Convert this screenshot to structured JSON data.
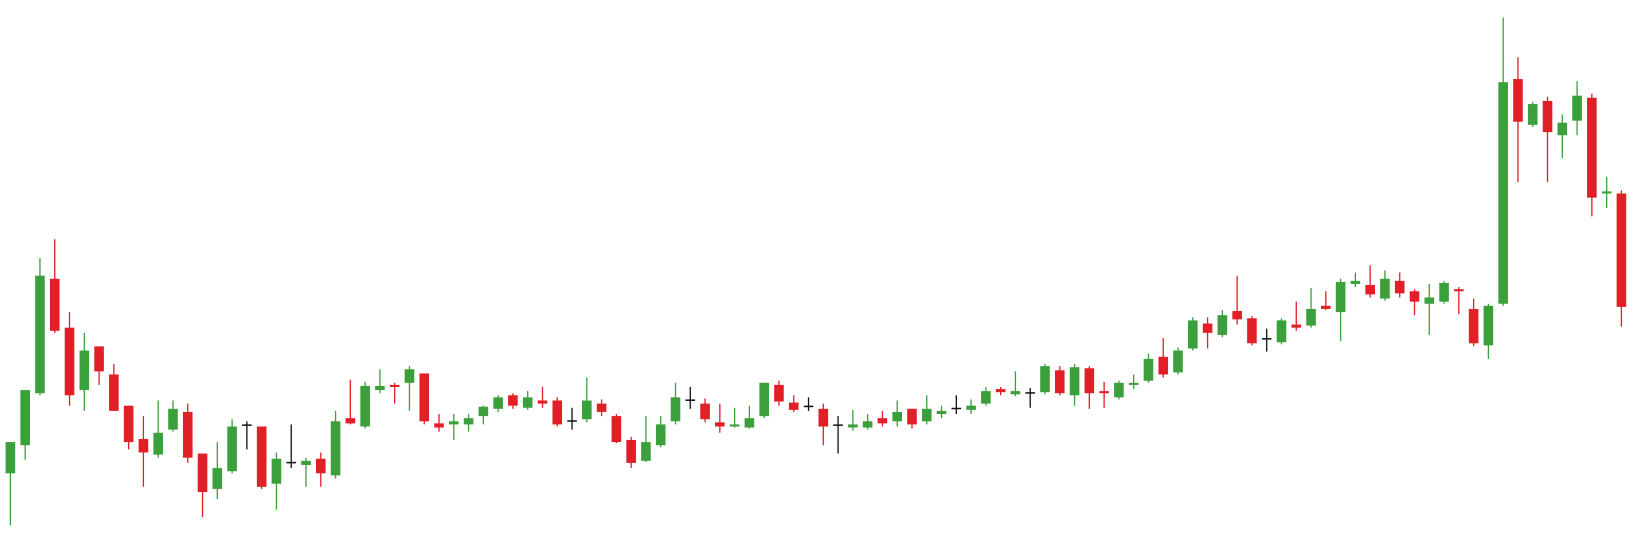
{
  "chart_data": {
    "type": "candlestick",
    "ylim": [
      0,
      522
    ],
    "up_color": "#3b9f3b",
    "down_color": "#e01f26",
    "doji_color": "#111111",
    "open": [
      67,
      94,
      144,
      254,
      207,
      147,
      189,
      162,
      132,
      100,
      85,
      109,
      126,
      86,
      52,
      69,
      114,
      112,
      57,
      78,
      75,
      81,
      65,
      120,
      112,
      147,
      152,
      154,
      163,
      115,
      114,
      114,
      122,
      129,
      142,
      130,
      137,
      137,
      118,
      119,
      134,
      122,
      99,
      79,
      94,
      117,
      138,
      134,
      116,
      112,
      111,
      122,
      152,
      135,
      132,
      129,
      114,
      111,
      111,
      120,
      117,
      129,
      117,
      124,
      130,
      128,
      134,
      148,
      143,
      145,
      145,
      166,
      142,
      168,
      146,
      140,
      152,
      156,
      179,
      164,
      187,
      211,
      200,
      223,
      216,
      197,
      193,
      210,
      209,
      228,
      222,
      249,
      248,
      235,
      252,
      242,
      230,
      232,
      244,
      225,
      190,
      230,
      446,
      402,
      425,
      392,
      406,
      428,
      336,
      336
    ],
    "high": [
      97,
      147,
      274,
      292,
      222,
      202,
      189,
      172,
      132,
      122,
      137,
      137,
      134,
      86,
      97,
      119,
      117,
      112,
      87,
      114,
      82,
      87,
      127,
      157,
      155,
      167,
      154,
      170,
      163,
      124,
      124,
      124,
      132,
      142,
      144,
      146,
      150,
      140,
      130,
      159,
      138,
      124,
      102,
      122,
      122,
      154,
      150,
      139,
      134,
      130,
      132,
      154,
      156,
      142,
      140,
      134,
      122,
      128,
      124,
      127,
      137,
      129,
      142,
      132,
      142,
      138,
      150,
      150,
      165,
      149,
      172,
      170,
      172,
      170,
      155,
      156,
      162,
      182,
      197,
      188,
      217,
      217,
      224,
      257,
      218,
      206,
      216,
      232,
      245,
      242,
      254,
      260,
      267,
      262,
      260,
      244,
      249,
      252,
      246,
      235,
      230,
      505,
      467,
      424,
      429,
      412,
      444,
      432,
      352,
      339
    ],
    "low": [
      17,
      80,
      142,
      202,
      132,
      127,
      152,
      127,
      90,
      54,
      82,
      107,
      77,
      25,
      42,
      67,
      90,
      52,
      32,
      72,
      54,
      54,
      62,
      114,
      110,
      144,
      134,
      127,
      114,
      107,
      99,
      107,
      114,
      126,
      129,
      128,
      130,
      112,
      109,
      116,
      122,
      96,
      72,
      78,
      92,
      114,
      129,
      116,
      106,
      111,
      110,
      120,
      132,
      126,
      127,
      94,
      86,
      108,
      109,
      112,
      112,
      110,
      114,
      120,
      124,
      124,
      132,
      142,
      141,
      130,
      143,
      142,
      132,
      129,
      130,
      138,
      148,
      154,
      159,
      162,
      185,
      187,
      198,
      210,
      190,
      184,
      191,
      204,
      207,
      224,
      194,
      246,
      236,
      233,
      236,
      219,
      200,
      230,
      220,
      189,
      177,
      228,
      347,
      400,
      347,
      370,
      392,
      314,
      322,
      208
    ],
    "close": [
      97,
      147,
      257,
      204,
      142,
      185,
      165,
      127,
      97,
      87,
      106,
      129,
      82,
      49,
      72,
      112,
      114,
      54,
      81,
      78,
      79,
      67,
      117,
      115,
      151,
      151,
      150,
      167,
      117,
      111,
      117,
      120,
      131,
      140,
      132,
      140,
      134,
      114,
      118,
      137,
      126,
      97,
      77,
      97,
      114,
      140,
      138,
      119,
      112,
      114,
      120,
      154,
      136,
      128,
      132,
      112,
      114,
      114,
      117,
      115,
      126,
      114,
      129,
      127,
      130,
      132,
      146,
      145,
      146,
      145,
      170,
      144,
      169,
      144,
      144,
      154,
      154,
      177,
      162,
      185,
      214,
      202,
      219,
      215,
      192,
      197,
      214,
      207,
      225,
      225,
      251,
      252,
      239,
      254,
      240,
      232,
      236,
      250,
      242,
      192,
      228,
      443,
      405,
      422,
      395,
      404,
      430,
      332,
      338,
      227
    ]
  }
}
